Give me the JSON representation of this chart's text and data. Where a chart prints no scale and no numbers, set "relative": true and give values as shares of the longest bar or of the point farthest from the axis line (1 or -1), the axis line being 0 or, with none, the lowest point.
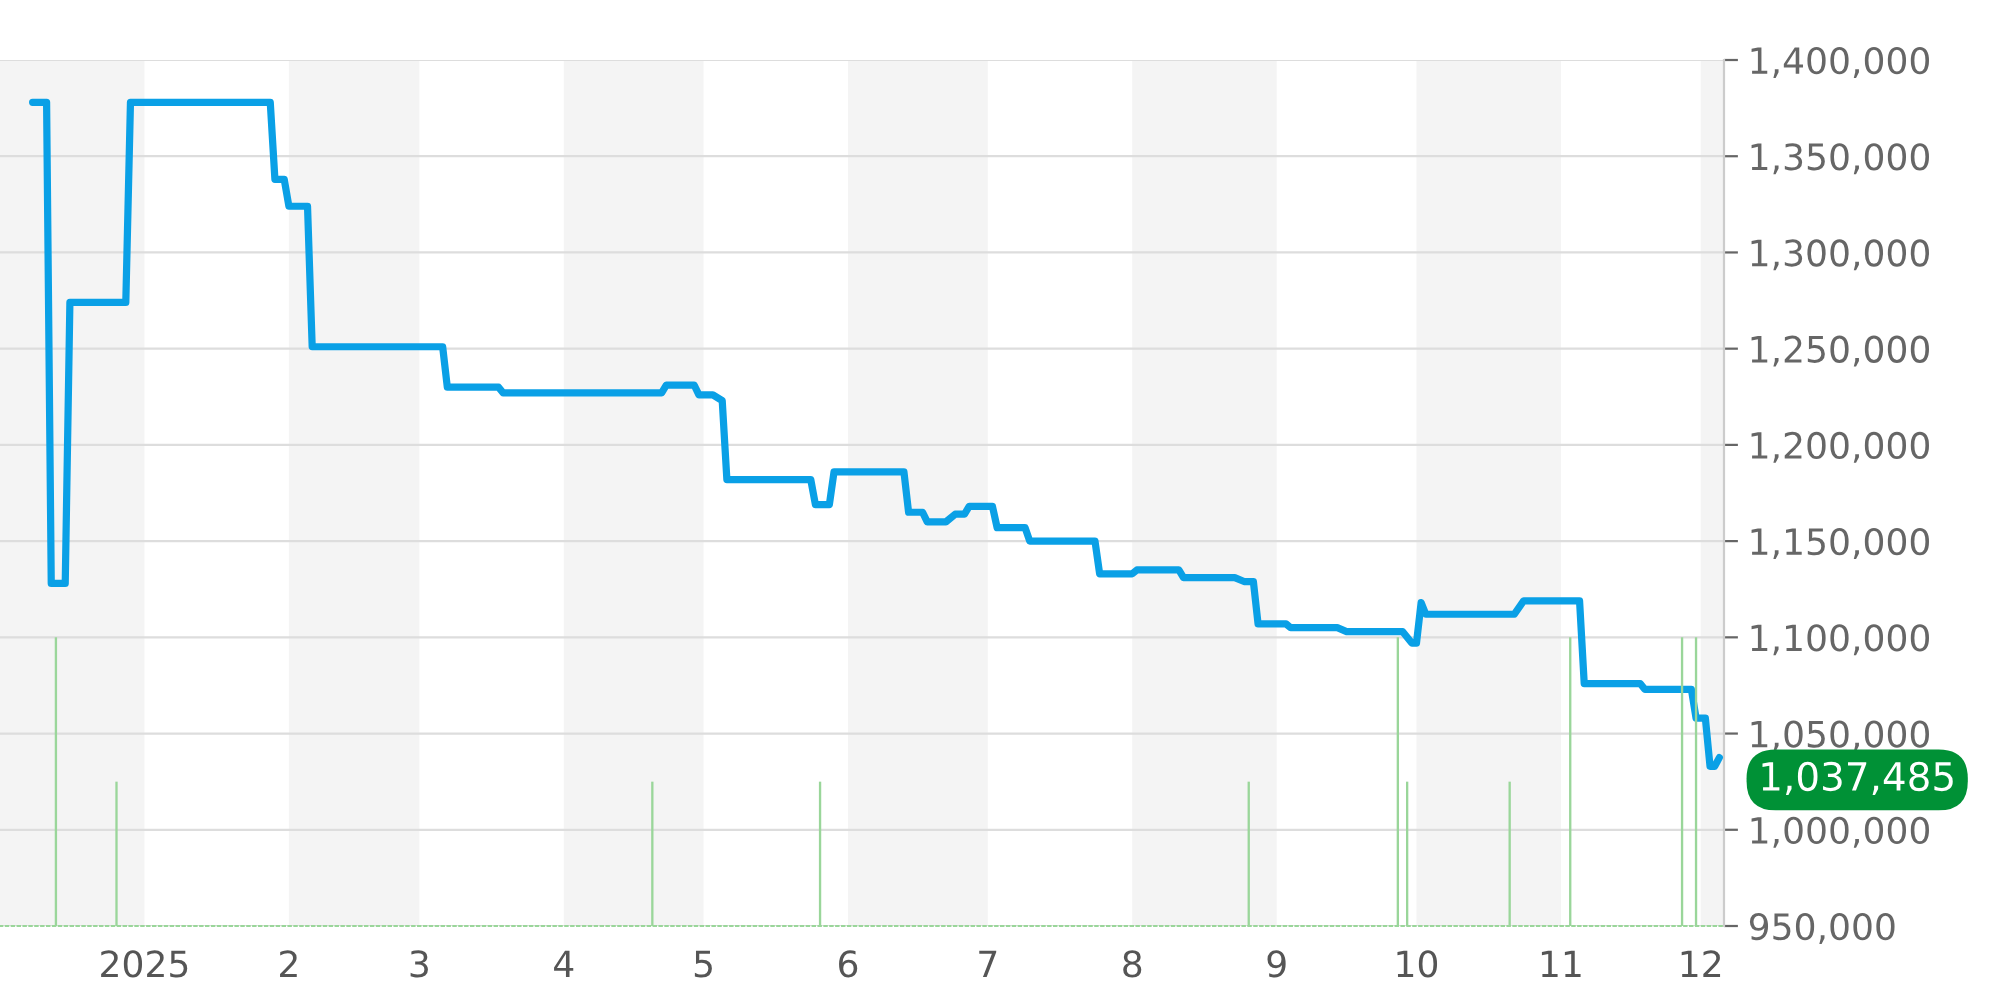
{
  "chart_data": [
    {
      "type": "line",
      "grid": "y",
      "legend": false,
      "xlim": [
        "2024-12-01",
        "2025-12-06"
      ],
      "xticks": [
        {
          "value": "2025-01-01",
          "label": "2025"
        },
        {
          "value": "2025-02-01",
          "label": "2"
        },
        {
          "value": "2025-03-01",
          "label": "3"
        },
        {
          "value": "2025-04-01",
          "label": "4"
        },
        {
          "value": "2025-05-01",
          "label": "5"
        },
        {
          "value": "2025-06-01",
          "label": "6"
        },
        {
          "value": "2025-07-01",
          "label": "7"
        },
        {
          "value": "2025-08-01",
          "label": "8"
        },
        {
          "value": "2025-09-01",
          "label": "9"
        },
        {
          "value": "2025-10-01",
          "label": "10"
        },
        {
          "value": "2025-11-01",
          "label": "11"
        },
        {
          "value": "2025-12-01",
          "label": "12"
        }
      ],
      "ylim": [
        950000,
        1400000
      ],
      "yticks": [
        {
          "value": 950000,
          "label": "950,000"
        },
        {
          "value": 1000000,
          "label": "1,000,000"
        },
        {
          "value": 1050000,
          "label": "1,050,000"
        },
        {
          "value": 1100000,
          "label": "1,100,000"
        },
        {
          "value": 1150000,
          "label": "1,150,000"
        },
        {
          "value": 1200000,
          "label": "1,200,000"
        },
        {
          "value": 1250000,
          "label": "1,250,000"
        },
        {
          "value": 1300000,
          "label": "1,300,000"
        },
        {
          "value": 1350000,
          "label": "1,350,000"
        },
        {
          "value": 1400000,
          "label": "1,400,000"
        }
      ],
      "bands": [
        {
          "axis": "x",
          "from": "2024-12-01",
          "to": "2025-01-01",
          "color": "#f4f4f4"
        },
        {
          "axis": "x",
          "from": "2025-02-01",
          "to": "2025-03-01",
          "color": "#f4f4f4"
        },
        {
          "axis": "x",
          "from": "2025-04-01",
          "to": "2025-05-01",
          "color": "#f4f4f4"
        },
        {
          "axis": "x",
          "from": "2025-06-01",
          "to": "2025-07-01",
          "color": "#f4f4f4"
        },
        {
          "axis": "x",
          "from": "2025-08-01",
          "to": "2025-09-01",
          "color": "#f4f4f4"
        },
        {
          "axis": "x",
          "from": "2025-10-01",
          "to": "2025-11-01",
          "color": "#f4f4f4"
        },
        {
          "axis": "x",
          "from": "2025-12-01",
          "to": "2025-12-06",
          "color": "#f4f4f4"
        }
      ],
      "series": [
        {
          "color": "#0aa0e6",
          "x": [
            "2024-12-08",
            "2024-12-11",
            "2024-12-12",
            "2024-12-15",
            "2024-12-16",
            "2024-12-28",
            "2024-12-29",
            "2025-01-28",
            "2025-01-29",
            "2025-01-31",
            "2025-02-01",
            "2025-02-05",
            "2025-02-06",
            "2025-03-06",
            "2025-03-07",
            "2025-03-18",
            "2025-03-19",
            "2025-04-22",
            "2025-04-23",
            "2025-04-29",
            "2025-04-30",
            "2025-05-03",
            "2025-05-05",
            "2025-05-06",
            "2025-05-24",
            "2025-05-25",
            "2025-05-28",
            "2025-05-29",
            "2025-06-13",
            "2025-06-14",
            "2025-06-17",
            "2025-06-18",
            "2025-06-22",
            "2025-06-24",
            "2025-06-26",
            "2025-06-27",
            "2025-07-02",
            "2025-07-03",
            "2025-07-09",
            "2025-07-10",
            "2025-07-24",
            "2025-07-25",
            "2025-08-01",
            "2025-08-02",
            "2025-08-11",
            "2025-08-12",
            "2025-08-23",
            "2025-08-25",
            "2025-08-27",
            "2025-08-28",
            "2025-09-03",
            "2025-09-04",
            "2025-09-14",
            "2025-09-16",
            "2025-09-28",
            "2025-09-30",
            "2025-10-01",
            "2025-10-02",
            "2025-10-03",
            "2025-10-22",
            "2025-10-24",
            "2025-11-05",
            "2025-11-06",
            "2025-11-18",
            "2025-11-19",
            "2025-11-29",
            "2025-11-30",
            "2025-12-02",
            "2025-12-03",
            "2025-12-04",
            "2025-12-05"
          ],
          "values": [
            1378000,
            1378000,
            1128000,
            1128000,
            1274000,
            1274000,
            1378000,
            1378000,
            1338000,
            1338000,
            1324000,
            1324000,
            1251000,
            1251000,
            1230000,
            1230000,
            1227000,
            1227000,
            1231000,
            1231000,
            1226000,
            1226000,
            1223000,
            1182000,
            1182000,
            1169000,
            1169000,
            1186000,
            1186000,
            1165000,
            1165000,
            1160000,
            1160000,
            1164000,
            1164000,
            1168000,
            1168000,
            1157000,
            1157000,
            1150000,
            1150000,
            1133000,
            1133000,
            1135000,
            1135000,
            1131000,
            1131000,
            1129000,
            1129000,
            1107000,
            1107000,
            1105000,
            1105000,
            1103000,
            1103000,
            1097000,
            1097000,
            1118000,
            1112000,
            1112000,
            1119000,
            1119000,
            1076000,
            1076000,
            1073000,
            1073000,
            1058000,
            1058000,
            1033000,
            1033000,
            1037485
          ],
          "value_labels": [
            null,
            null,
            null,
            null,
            null,
            null,
            null,
            null,
            null,
            null,
            null,
            null,
            null,
            null,
            null,
            null,
            null,
            null,
            null,
            null,
            null,
            null,
            null,
            null,
            null,
            null,
            null,
            null,
            null,
            null,
            null,
            null,
            null,
            null,
            null,
            null,
            null,
            null,
            null,
            null,
            null,
            null,
            null,
            null,
            null,
            null,
            null,
            null,
            null,
            null,
            null,
            null,
            null,
            null,
            null,
            null,
            null,
            null,
            null,
            null,
            null,
            null,
            null,
            null,
            null,
            null,
            null,
            null,
            null,
            null,
            "1,037,485"
          ]
        }
      ]
    },
    {
      "type": "bar",
      "relative": true,
      "tick_labels": false,
      "xlim": [
        "2024-12-01",
        "2025-12-06"
      ],
      "series": [
        {
          "color": "#9ad69a",
          "x": [
            "2024-12-13",
            "2024-12-26",
            "2025-04-20",
            "2025-05-26",
            "2025-08-26",
            "2025-09-27",
            "2025-09-29",
            "2025-10-21",
            "2025-11-03",
            "2025-11-27",
            "2025-11-30"
          ],
          "values": [
            1,
            0.5,
            0.5,
            0.5,
            0.5,
            1,
            0.5,
            0.5,
            1,
            1,
            1
          ]
        }
      ]
    }
  ]
}
